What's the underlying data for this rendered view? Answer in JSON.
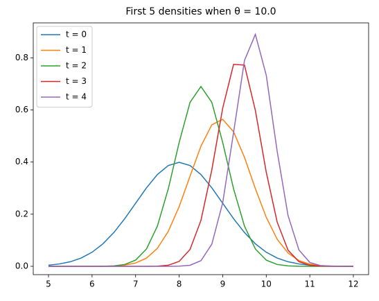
{
  "chart_data": {
    "type": "line",
    "title": "First 5 densities when θ = 10.0",
    "x": [
      5,
      5.25,
      5.5,
      5.75,
      6,
      6.25,
      6.5,
      6.75,
      7,
      7.25,
      7.5,
      7.75,
      8,
      8.25,
      8.5,
      8.75,
      9,
      9.25,
      9.5,
      9.75,
      10,
      10.25,
      10.5,
      10.75,
      11,
      11.25,
      11.5,
      11.75,
      12
    ],
    "series": [
      {
        "name": "t = 0",
        "color": "#1f77b4",
        "values": [
          0.0044,
          0.0091,
          0.0175,
          0.0317,
          0.054,
          0.0863,
          0.1295,
          0.1826,
          0.242,
          0.3011,
          0.3521,
          0.3867,
          0.3989,
          0.3867,
          0.3521,
          0.3011,
          0.242,
          0.1826,
          0.1295,
          0.0863,
          0.054,
          0.0317,
          0.0175,
          0.0091,
          0.0044,
          0.002,
          0.0009,
          0.0004,
          0.0001
        ]
      },
      {
        "name": "t = 1",
        "color": "#ff7f0e",
        "values": [
          0,
          0,
          0,
          0,
          0.0001,
          0.0004,
          0.0014,
          0.0045,
          0.0127,
          0.0314,
          0.069,
          0.134,
          0.229,
          0.346,
          0.461,
          0.543,
          0.564,
          0.516,
          0.418,
          0.298,
          0.188,
          0.104,
          0.051,
          0.022,
          0.0085,
          0.0028,
          0.0008,
          0.0002,
          0
        ]
      },
      {
        "name": "t = 2",
        "color": "#2ca02c",
        "values": [
          0,
          0,
          0,
          0,
          0.0001,
          0.0004,
          0.0017,
          0.0071,
          0.0237,
          0.0665,
          0.154,
          0.297,
          0.475,
          0.629,
          0.69,
          0.629,
          0.475,
          0.297,
          0.154,
          0.0665,
          0.0237,
          0.0071,
          0.0017,
          0.0004,
          0.0001,
          0,
          0,
          0,
          0
        ]
      },
      {
        "name": "t = 3",
        "color": "#d62728",
        "values": [
          0,
          0,
          0,
          0,
          0,
          0,
          0,
          0,
          0,
          0.0001,
          0.0007,
          0.0042,
          0.0188,
          0.0649,
          0.176,
          0.37,
          0.607,
          0.775,
          0.772,
          0.598,
          0.361,
          0.17,
          0.062,
          0.0177,
          0.0039,
          0.0007,
          0.0001,
          0,
          0
        ]
      },
      {
        "name": "t = 4",
        "color": "#9467bd",
        "values": [
          0,
          0,
          0,
          0,
          0,
          0,
          0,
          0,
          0,
          0,
          0,
          0.0001,
          0.0005,
          0.004,
          0.0216,
          0.085,
          0.244,
          0.514,
          0.79,
          0.89,
          0.733,
          0.442,
          0.195,
          0.0629,
          0.0148,
          0.0026,
          0.0003,
          0,
          0
        ]
      }
    ],
    "xlim": [
      4.65,
      12.35
    ],
    "xticks": [
      5,
      6,
      7,
      8,
      9,
      10,
      11,
      12
    ],
    "ylim": [
      -0.032,
      0.934
    ],
    "yticks": [
      {
        "value": 0,
        "label": "0.0"
      },
      0.2,
      0.4,
      0.6,
      0.8
    ],
    "legend": "upper left",
    "grid": false
  }
}
